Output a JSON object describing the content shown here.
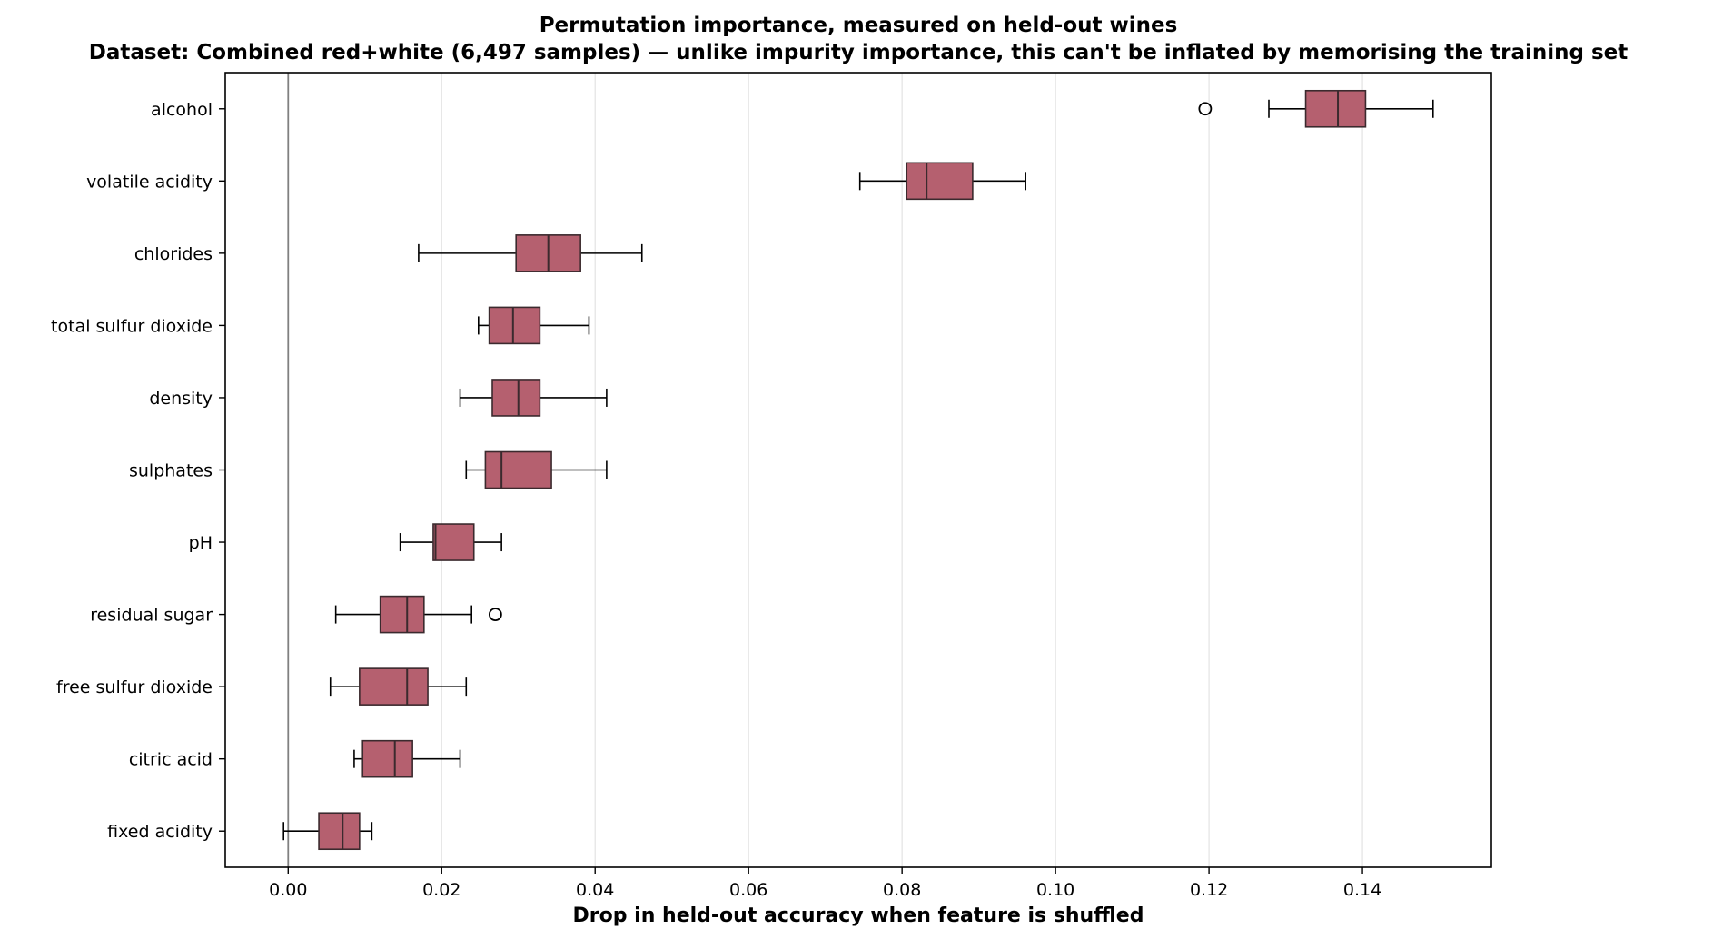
{
  "chart_data": {
    "type": "boxplot",
    "orientation": "horizontal",
    "title": "Permutation importance, measured on held-out wines",
    "subtitle": "Dataset: Combined red+white (6,497 samples) — unlike impurity importance, this can't be inflated by memorising the training set",
    "xlabel": "Drop in held-out accuracy when feature is shuffled",
    "ylabel": "",
    "xlim": [
      -0.0082,
      0.1568
    ],
    "xticks": [
      0.0,
      0.02,
      0.04,
      0.06,
      0.08,
      0.1,
      0.12,
      0.14
    ],
    "xtick_labels": [
      "0.00",
      "0.02",
      "0.04",
      "0.06",
      "0.08",
      "0.10",
      "0.12",
      "0.14"
    ],
    "grid": "vertical",
    "reference_line_x": 0.0,
    "box_color": "#b5606f",
    "box_edge_color": "#3b2a2e",
    "features": [
      {
        "name": "alcohol",
        "whisker_low": 0.1278,
        "q1": 0.1326,
        "median": 0.1368,
        "q3": 0.1404,
        "whisker_high": 0.1492,
        "outliers": [
          0.1195
        ]
      },
      {
        "name": "volatile acidity",
        "whisker_low": 0.0745,
        "q1": 0.0806,
        "median": 0.0832,
        "q3": 0.0892,
        "whisker_high": 0.0961,
        "outliers": []
      },
      {
        "name": "chlorides",
        "whisker_low": 0.017,
        "q1": 0.0297,
        "median": 0.0339,
        "q3": 0.0381,
        "whisker_high": 0.0461,
        "outliers": []
      },
      {
        "name": "total sulfur dioxide",
        "whisker_low": 0.0248,
        "q1": 0.0262,
        "median": 0.0293,
        "q3": 0.0328,
        "whisker_high": 0.0392,
        "outliers": []
      },
      {
        "name": "density",
        "whisker_low": 0.0224,
        "q1": 0.0266,
        "median": 0.03,
        "q3": 0.0328,
        "whisker_high": 0.0415,
        "outliers": []
      },
      {
        "name": "sulphates",
        "whisker_low": 0.0232,
        "q1": 0.0257,
        "median": 0.0278,
        "q3": 0.0343,
        "whisker_high": 0.0415,
        "outliers": []
      },
      {
        "name": "pH",
        "whisker_low": 0.0146,
        "q1": 0.0189,
        "median": 0.0192,
        "q3": 0.0242,
        "whisker_high": 0.0278,
        "outliers": []
      },
      {
        "name": "residual sugar",
        "whisker_low": 0.0062,
        "q1": 0.012,
        "median": 0.0155,
        "q3": 0.0177,
        "whisker_high": 0.0239,
        "outliers": [
          0.027
        ]
      },
      {
        "name": "free sulfur dioxide",
        "whisker_low": 0.0055,
        "q1": 0.0093,
        "median": 0.0155,
        "q3": 0.0182,
        "whisker_high": 0.0232,
        "outliers": []
      },
      {
        "name": "citric acid",
        "whisker_low": 0.0086,
        "q1": 0.0097,
        "median": 0.0139,
        "q3": 0.0162,
        "whisker_high": 0.0224,
        "outliers": []
      },
      {
        "name": "fixed acidity",
        "whisker_low": -0.0006,
        "q1": 0.004,
        "median": 0.0071,
        "q3": 0.0093,
        "whisker_high": 0.0109,
        "outliers": []
      }
    ]
  }
}
